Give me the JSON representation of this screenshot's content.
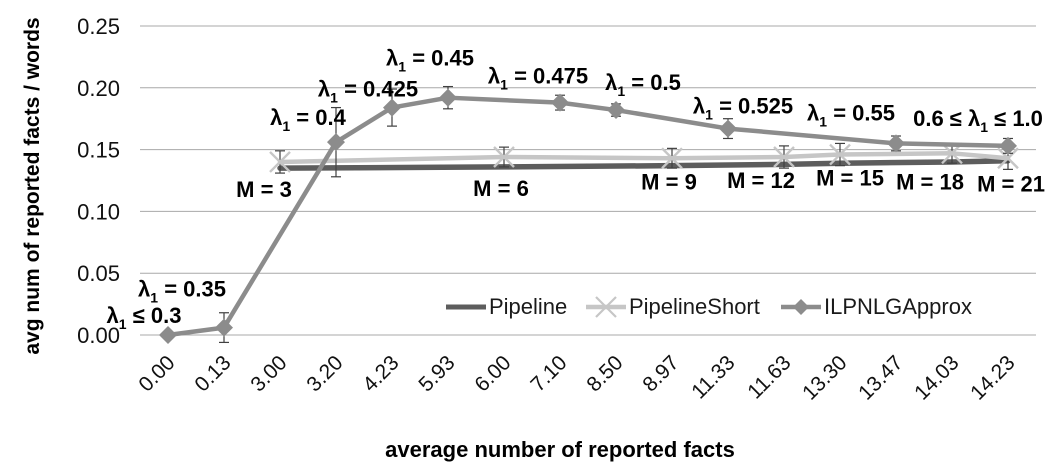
{
  "chart_data": {
    "type": "line",
    "title": "",
    "xlabel": "average number of reported facts",
    "ylabel": "avg num of reported facts / words",
    "ylim": [
      0,
      0.25
    ],
    "ytick_labels": [
      "0.00",
      "0.05",
      "0.10",
      "0.15",
      "0.20",
      "0.25"
    ],
    "grid": "horizontal-only",
    "gridline_color": "#a8a8a8",
    "error_bar_color": "#404040",
    "legend": {
      "position": "inside-bottom-center",
      "entries": [
        "Pipeline",
        "PipelineShort",
        "ILPNLGApprox"
      ]
    },
    "categories": [
      "0.00",
      "0.13",
      "3.00",
      "3.20",
      "4.23",
      "5.93",
      "6.00",
      "7.10",
      "8.50",
      "8.97",
      "11.33",
      "11.63",
      "13.30",
      "13.47",
      "14.03",
      "14.23"
    ],
    "series": [
      {
        "name": "Pipeline",
        "color": "#5d5d5d",
        "marker": "none",
        "points": [
          {
            "x": "3.00",
            "y": 0.135
          },
          {
            "x": "6.00",
            "y": 0.136
          },
          {
            "x": "8.97",
            "y": 0.137
          },
          {
            "x": "11.63",
            "y": 0.138
          },
          {
            "x": "13.30",
            "y": 0.139
          },
          {
            "x": "14.03",
            "y": 0.14
          },
          {
            "x": "14.23",
            "y": 0.141
          }
        ]
      },
      {
        "name": "PipelineShort",
        "color": "#c6c6c6",
        "marker": "x",
        "points": [
          {
            "x": "3.00",
            "y": 0.14,
            "err": 0.009,
            "label": {
              "pre": "M = 3"
            }
          },
          {
            "x": "6.00",
            "y": 0.144,
            "err": 0.008,
            "label": {
              "pre": "M = 6"
            }
          },
          {
            "x": "8.97",
            "y": 0.143,
            "err": 0.008,
            "label": {
              "pre": "M = 9"
            }
          },
          {
            "x": "11.63",
            "y": 0.144,
            "err": 0.009,
            "label": {
              "pre": "M = 12"
            }
          },
          {
            "x": "13.30",
            "y": 0.146,
            "err": 0.009,
            "label": {
              "pre": "M = 15"
            }
          },
          {
            "x": "14.03",
            "y": 0.147,
            "err": 0.008,
            "label": {
              "pre": "M = 18"
            }
          },
          {
            "x": "14.23",
            "y": 0.143,
            "err": 0.009,
            "label": {
              "pre": "M = 21"
            }
          }
        ]
      },
      {
        "name": "ILPNLGApprox",
        "color": "#8c8c8c",
        "marker": "diamond",
        "points": [
          {
            "x": "0.00",
            "y": 0.0,
            "label": {
              "pre": "λ",
              "sub": "1",
              "post": " ≤ 0.3"
            }
          },
          {
            "x": "0.13",
            "y": 0.006,
            "err": 0.012,
            "label": {
              "pre": "λ",
              "sub": "1",
              "post": " = 0.35"
            }
          },
          {
            "x": "3.20",
            "y": 0.156,
            "err": 0.028,
            "label": {
              "pre": "λ",
              "sub": "1",
              "post": " = 0.4"
            }
          },
          {
            "x": "4.23",
            "y": 0.184,
            "err": 0.015,
            "label": {
              "pre": "λ",
              "sub": "1",
              "post": " = 0.425"
            }
          },
          {
            "x": "5.93",
            "y": 0.192,
            "err": 0.009,
            "label": {
              "pre": "λ",
              "sub": "1",
              "post": " = 0.45"
            }
          },
          {
            "x": "7.10",
            "y": 0.188,
            "err": 0.006,
            "label": {
              "pre": "λ",
              "sub": "1",
              "post": " = 0.475"
            }
          },
          {
            "x": "8.50",
            "y": 0.182,
            "err": 0.005,
            "label": {
              "pre": "λ",
              "sub": "1",
              "post": " = 0.5"
            }
          },
          {
            "x": "11.33",
            "y": 0.167,
            "err": 0.008,
            "label": {
              "pre": "λ",
              "sub": "1",
              "post": " = 0.525"
            }
          },
          {
            "x": "13.47",
            "y": 0.155,
            "err": 0.006,
            "label": {
              "pre": "λ",
              "sub": "1",
              "post": " = 0.55"
            }
          },
          {
            "x": "14.23",
            "y": 0.153,
            "err": 0.006,
            "label": {
              "pre": "0.6 ≤ λ",
              "sub": "1",
              "post": " ≤ 1.0"
            }
          }
        ]
      }
    ]
  }
}
